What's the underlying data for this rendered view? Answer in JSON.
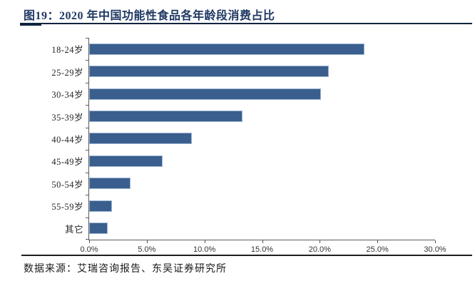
{
  "figure": {
    "title": "图19：2020 年中国功能性食品各年龄段消费占比",
    "source_label": "数据来源：艾瑞咨询报告、东吴证券研究所"
  },
  "colors": {
    "title": "#1F3864",
    "rule_dark": "#10243E",
    "bar_fill": "#3A5F8E",
    "bar_border": "#9FB6D4",
    "axis": "#595959",
    "label_text": "#262626"
  },
  "chart_data": {
    "type": "bar",
    "orientation": "horizontal",
    "title": "2020 年中国功能性食品各年龄段消费占比",
    "categories": [
      "18-24岁",
      "25-29岁",
      "30-34岁",
      "35-39岁",
      "40-44岁",
      "45-49岁",
      "50-54岁",
      "55-59岁",
      "其它"
    ],
    "values": [
      23.9,
      20.8,
      20.1,
      13.3,
      8.9,
      6.4,
      3.6,
      2.0,
      1.6
    ],
    "unit": "%",
    "x_ticks": [
      "0.0%",
      "5.0%",
      "10.0%",
      "15.0%",
      "20.0%",
      "25.0%",
      "30.0%"
    ],
    "xlim": [
      0,
      30
    ],
    "xlabel": "",
    "ylabel": "",
    "grid": false,
    "legend": false
  }
}
